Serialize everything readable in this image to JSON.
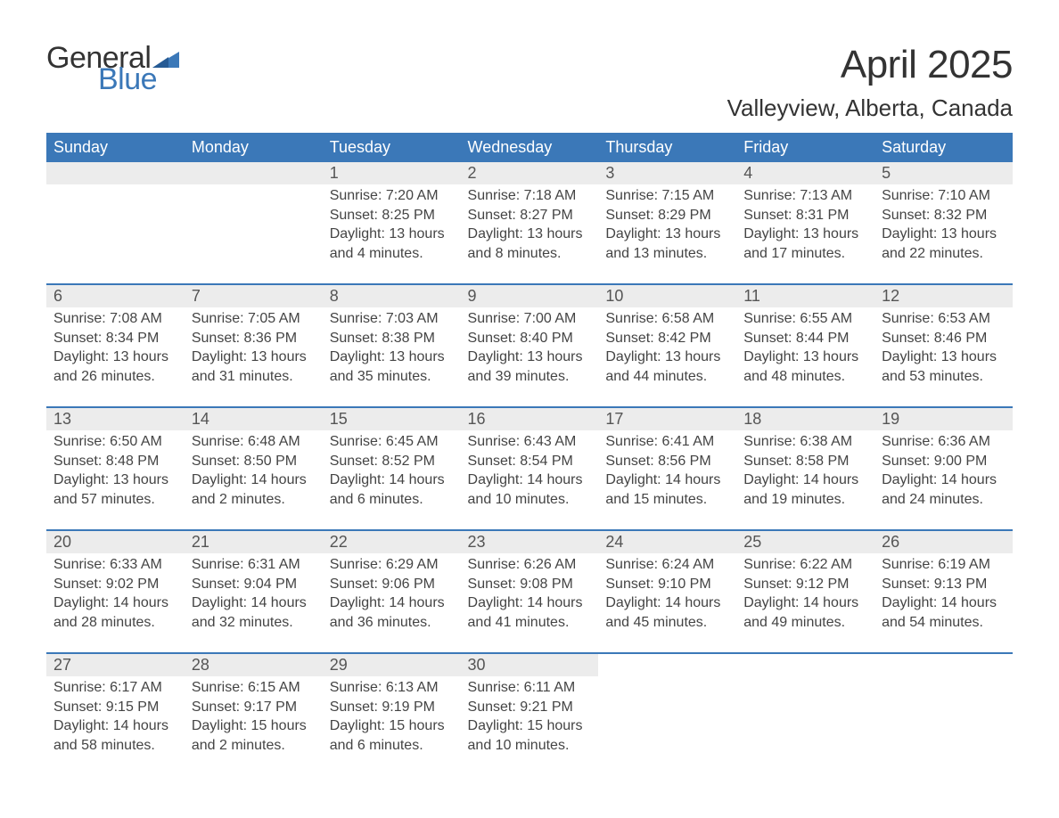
{
  "logo": {
    "text_general": "General",
    "text_blue": "Blue",
    "flag_color": "#3b78b8"
  },
  "header": {
    "month_title": "April 2025",
    "location": "Valleyview, Alberta, Canada"
  },
  "colors": {
    "header_bg": "#3b78b8",
    "header_text": "#ffffff",
    "daynum_bg": "#ececec",
    "row_border": "#3b78b8",
    "body_text": "#444444",
    "title_text": "#333333"
  },
  "typography": {
    "month_title_fontsize": 44,
    "location_fontsize": 26,
    "dayheader_fontsize": 18,
    "daynum_fontsize": 18,
    "cell_fontsize": 16
  },
  "day_headers": [
    "Sunday",
    "Monday",
    "Tuesday",
    "Wednesday",
    "Thursday",
    "Friday",
    "Saturday"
  ],
  "weeks": [
    [
      null,
      null,
      {
        "n": "1",
        "sunrise": "7:20 AM",
        "sunset": "8:25 PM",
        "daylight": "13 hours and 4 minutes."
      },
      {
        "n": "2",
        "sunrise": "7:18 AM",
        "sunset": "8:27 PM",
        "daylight": "13 hours and 8 minutes."
      },
      {
        "n": "3",
        "sunrise": "7:15 AM",
        "sunset": "8:29 PM",
        "daylight": "13 hours and 13 minutes."
      },
      {
        "n": "4",
        "sunrise": "7:13 AM",
        "sunset": "8:31 PM",
        "daylight": "13 hours and 17 minutes."
      },
      {
        "n": "5",
        "sunrise": "7:10 AM",
        "sunset": "8:32 PM",
        "daylight": "13 hours and 22 minutes."
      }
    ],
    [
      {
        "n": "6",
        "sunrise": "7:08 AM",
        "sunset": "8:34 PM",
        "daylight": "13 hours and 26 minutes."
      },
      {
        "n": "7",
        "sunrise": "7:05 AM",
        "sunset": "8:36 PM",
        "daylight": "13 hours and 31 minutes."
      },
      {
        "n": "8",
        "sunrise": "7:03 AM",
        "sunset": "8:38 PM",
        "daylight": "13 hours and 35 minutes."
      },
      {
        "n": "9",
        "sunrise": "7:00 AM",
        "sunset": "8:40 PM",
        "daylight": "13 hours and 39 minutes."
      },
      {
        "n": "10",
        "sunrise": "6:58 AM",
        "sunset": "8:42 PM",
        "daylight": "13 hours and 44 minutes."
      },
      {
        "n": "11",
        "sunrise": "6:55 AM",
        "sunset": "8:44 PM",
        "daylight": "13 hours and 48 minutes."
      },
      {
        "n": "12",
        "sunrise": "6:53 AM",
        "sunset": "8:46 PM",
        "daylight": "13 hours and 53 minutes."
      }
    ],
    [
      {
        "n": "13",
        "sunrise": "6:50 AM",
        "sunset": "8:48 PM",
        "daylight": "13 hours and 57 minutes."
      },
      {
        "n": "14",
        "sunrise": "6:48 AM",
        "sunset": "8:50 PM",
        "daylight": "14 hours and 2 minutes."
      },
      {
        "n": "15",
        "sunrise": "6:45 AM",
        "sunset": "8:52 PM",
        "daylight": "14 hours and 6 minutes."
      },
      {
        "n": "16",
        "sunrise": "6:43 AM",
        "sunset": "8:54 PM",
        "daylight": "14 hours and 10 minutes."
      },
      {
        "n": "17",
        "sunrise": "6:41 AM",
        "sunset": "8:56 PM",
        "daylight": "14 hours and 15 minutes."
      },
      {
        "n": "18",
        "sunrise": "6:38 AM",
        "sunset": "8:58 PM",
        "daylight": "14 hours and 19 minutes."
      },
      {
        "n": "19",
        "sunrise": "6:36 AM",
        "sunset": "9:00 PM",
        "daylight": "14 hours and 24 minutes."
      }
    ],
    [
      {
        "n": "20",
        "sunrise": "6:33 AM",
        "sunset": "9:02 PM",
        "daylight": "14 hours and 28 minutes."
      },
      {
        "n": "21",
        "sunrise": "6:31 AM",
        "sunset": "9:04 PM",
        "daylight": "14 hours and 32 minutes."
      },
      {
        "n": "22",
        "sunrise": "6:29 AM",
        "sunset": "9:06 PM",
        "daylight": "14 hours and 36 minutes."
      },
      {
        "n": "23",
        "sunrise": "6:26 AM",
        "sunset": "9:08 PM",
        "daylight": "14 hours and 41 minutes."
      },
      {
        "n": "24",
        "sunrise": "6:24 AM",
        "sunset": "9:10 PM",
        "daylight": "14 hours and 45 minutes."
      },
      {
        "n": "25",
        "sunrise": "6:22 AM",
        "sunset": "9:12 PM",
        "daylight": "14 hours and 49 minutes."
      },
      {
        "n": "26",
        "sunrise": "6:19 AM",
        "sunset": "9:13 PM",
        "daylight": "14 hours and 54 minutes."
      }
    ],
    [
      {
        "n": "27",
        "sunrise": "6:17 AM",
        "sunset": "9:15 PM",
        "daylight": "14 hours and 58 minutes."
      },
      {
        "n": "28",
        "sunrise": "6:15 AM",
        "sunset": "9:17 PM",
        "daylight": "15 hours and 2 minutes."
      },
      {
        "n": "29",
        "sunrise": "6:13 AM",
        "sunset": "9:19 PM",
        "daylight": "15 hours and 6 minutes."
      },
      {
        "n": "30",
        "sunrise": "6:11 AM",
        "sunset": "9:21 PM",
        "daylight": "15 hours and 10 minutes."
      },
      null,
      null,
      null
    ]
  ],
  "labels": {
    "sunrise": "Sunrise: ",
    "sunset": "Sunset: ",
    "daylight": "Daylight: "
  }
}
